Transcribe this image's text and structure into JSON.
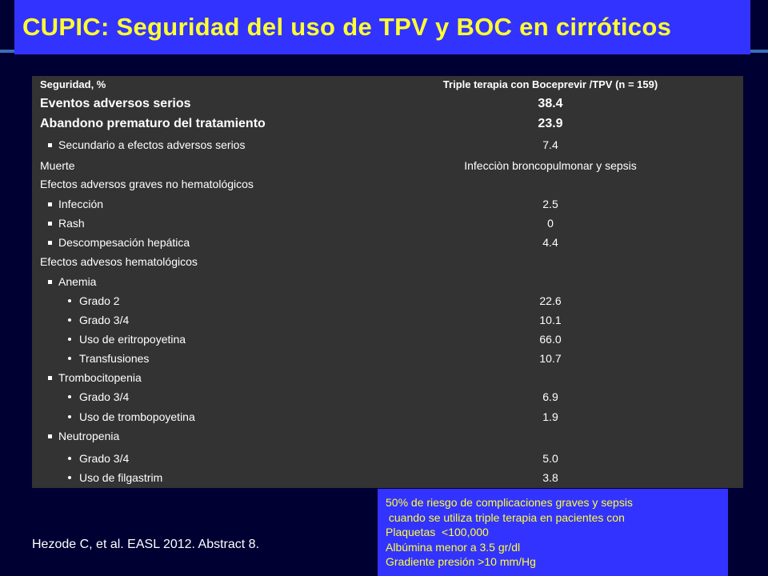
{
  "title": "CUPIC: Seguridad del uso de TPV y BOC en cirróticos",
  "table": {
    "header": {
      "label": "Seguridad, %",
      "value": "Triple terapia con Boceprevir /TPV (n = 159)"
    },
    "rows": [
      {
        "label": "Eventos adversos serios",
        "value": "38.4"
      },
      {
        "label": "Abandono prematuro del tratamiento",
        "value": "23.9"
      },
      {
        "label": "Secundario a efectos adversos serios",
        "value": "7.4"
      },
      {
        "label": "Muerte",
        "value": "Infecciòn broncopulmonar y sepsis"
      },
      {
        "label": "Efectos adversos graves no hematológicos",
        "value": ""
      },
      {
        "label": "Infección",
        "value": "2.5"
      },
      {
        "label": "Rash",
        "value": "0"
      },
      {
        "label": "Descompesación hepática",
        "value": "4.4"
      },
      {
        "label": "Efectos advesos hematológicos",
        "value": ""
      },
      {
        "label": "Anemia",
        "value": ""
      },
      {
        "label": "Grado 2",
        "value": "22.6"
      },
      {
        "label": "Grado 3/4",
        "value": "10.1"
      },
      {
        "label": "Uso de eritropoyetina",
        "value": "66.0"
      },
      {
        "label": "Transfusiones",
        "value": "10.7"
      },
      {
        "label": "Trombocitopenia",
        "value": ""
      },
      {
        "label": "Grado 3/4",
        "value": "6.9"
      },
      {
        "label": "Uso de trombopoyetina",
        "value": "1.9"
      },
      {
        "label": "Neutropenia",
        "value": ""
      },
      {
        "label": "Grado 3/4",
        "value": "5.0"
      },
      {
        "label": "Uso de filgastrim",
        "value": "3.8"
      }
    ]
  },
  "citation": "Hezode C, et al. EASL 2012. Abstract 8.",
  "note": {
    "lines": [
      "50% de riesgo de complicaciones graves y sepsis",
      " cuando se utiliza triple terapia en pacientes con",
      "Plaquetas  <100,000",
      "Albúmina menor a 3.5 gr/dl",
      "Gradiente presión >10 mm/Hg"
    ]
  },
  "colors": {
    "background": "#000033",
    "title_box": "#3333ff",
    "title_text": "#ffff33",
    "table_bg": "#333333"
  }
}
